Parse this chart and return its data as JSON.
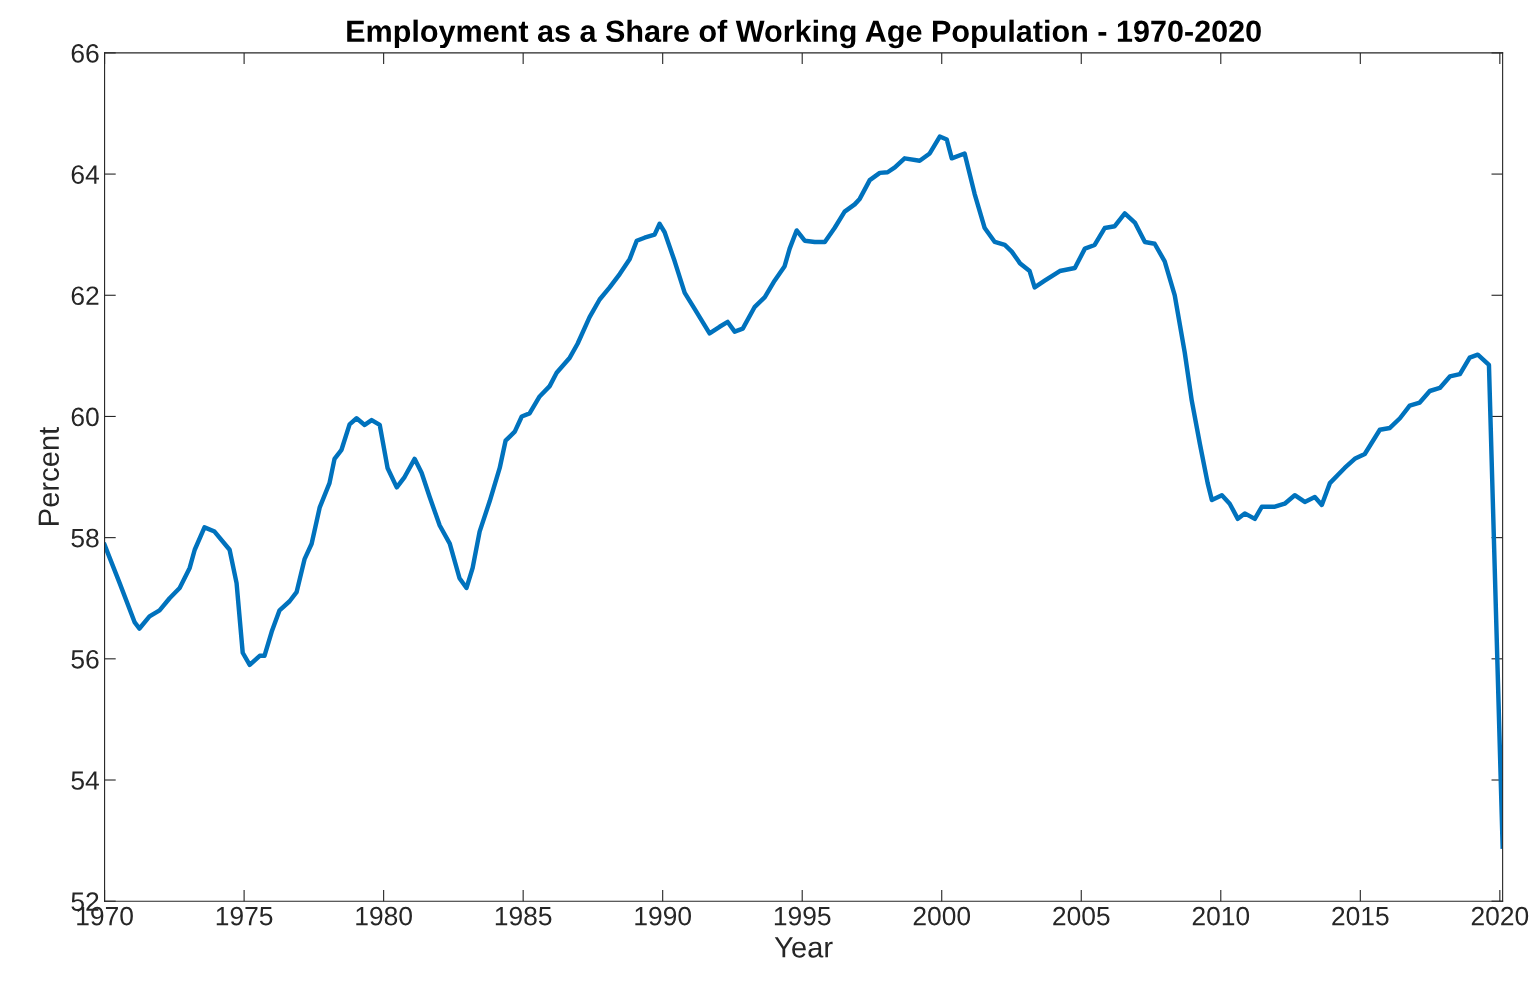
{
  "chart_data": {
    "type": "line",
    "title": "Employment as a Share of Working Age Population - 1970-2020",
    "xlabel": "Year",
    "ylabel": "Percent",
    "xlim": [
      1970,
      2020.1
    ],
    "xticks": [
      1970,
      1975,
      1980,
      1985,
      1990,
      1995,
      2000,
      2005,
      2010,
      2015,
      2020
    ],
    "ylim": [
      52,
      66
    ],
    "yticks": [
      52,
      54,
      56,
      58,
      60,
      62,
      64,
      66
    ],
    "grid": false,
    "legend": false,
    "series": [
      {
        "color": "#0072bd",
        "x": [
          1970.0,
          1970.54,
          1971.08,
          1971.25,
          1971.61,
          1971.97,
          1972.33,
          1972.69,
          1973.05,
          1973.23,
          1973.58,
          1973.94,
          1974.48,
          1974.73,
          1974.95,
          1975.2,
          1975.56,
          1975.73,
          1975.99,
          1976.27,
          1976.63,
          1976.88,
          1977.17,
          1977.42,
          1977.71,
          1978.06,
          1978.24,
          1978.49,
          1978.78,
          1979.03,
          1979.32,
          1979.57,
          1979.86,
          1980.14,
          1980.47,
          1980.75,
          1981.11,
          1981.36,
          1981.65,
          1982.01,
          1982.37,
          1982.72,
          1982.97,
          1983.19,
          1983.44,
          1983.8,
          1984.16,
          1984.37,
          1984.7,
          1984.95,
          1985.23,
          1985.59,
          1985.95,
          1986.2,
          1986.67,
          1986.95,
          1987.38,
          1987.74,
          1988.1,
          1988.46,
          1988.82,
          1989.07,
          1989.35,
          1989.71,
          1989.89,
          1990.07,
          1990.43,
          1990.79,
          1991.15,
          1991.68,
          1992.04,
          1992.33,
          1992.58,
          1992.87,
          1993.3,
          1993.66,
          1994.01,
          1994.37,
          1994.55,
          1994.8,
          1995.09,
          1995.45,
          1995.81,
          1996.16,
          1996.52,
          1996.88,
          1997.06,
          1997.42,
          1997.78,
          1998.06,
          1998.32,
          1998.67,
          1999.21,
          1999.57,
          1999.93,
          2000.18,
          2000.36,
          2000.82,
          2001.18,
          2001.54,
          2001.9,
          2002.26,
          2002.51,
          2002.8,
          2003.15,
          2003.33,
          2003.69,
          2004.23,
          2004.77,
          2005.13,
          2005.48,
          2005.84,
          2006.2,
          2006.56,
          2006.92,
          2007.28,
          2007.63,
          2007.99,
          2008.35,
          2008.71,
          2008.96,
          2009.25,
          2009.53,
          2009.68,
          2010.04,
          2010.32,
          2010.61,
          2010.86,
          2011.22,
          2011.47,
          2011.94,
          2012.29,
          2012.65,
          2013.01,
          2013.37,
          2013.62,
          2013.91,
          2014.44,
          2014.8,
          2015.16,
          2015.7,
          2016.06,
          2016.42,
          2016.77,
          2017.13,
          2017.49,
          2017.85,
          2018.21,
          2018.57,
          2018.92,
          2019.21,
          2019.61,
          2020.1
        ],
        "values": [
          57.88,
          57.25,
          56.6,
          56.5,
          56.7,
          56.8,
          57.0,
          57.17,
          57.5,
          57.8,
          58.17,
          58.1,
          57.8,
          57.25,
          56.1,
          55.9,
          56.05,
          56.05,
          56.45,
          56.8,
          56.95,
          57.1,
          57.65,
          57.9,
          58.5,
          58.9,
          59.3,
          59.45,
          59.87,
          59.97,
          59.86,
          59.94,
          59.86,
          59.15,
          58.83,
          59.0,
          59.3,
          59.07,
          58.67,
          58.2,
          57.9,
          57.33,
          57.17,
          57.5,
          58.1,
          58.6,
          59.15,
          59.6,
          59.75,
          60.0,
          60.05,
          60.33,
          60.5,
          60.72,
          60.97,
          61.2,
          61.64,
          61.93,
          62.13,
          62.35,
          62.6,
          62.9,
          62.95,
          63.0,
          63.18,
          63.04,
          62.56,
          62.04,
          61.77,
          61.37,
          61.48,
          61.56,
          61.4,
          61.45,
          61.81,
          61.97,
          62.24,
          62.48,
          62.77,
          63.07,
          62.9,
          62.88,
          62.88,
          63.11,
          63.38,
          63.5,
          63.59,
          63.9,
          64.02,
          64.03,
          64.11,
          64.26,
          64.22,
          64.34,
          64.62,
          64.57,
          64.26,
          64.34,
          63.67,
          63.11,
          62.88,
          62.83,
          62.72,
          62.53,
          62.4,
          62.13,
          62.24,
          62.4,
          62.45,
          62.77,
          62.83,
          63.11,
          63.14,
          63.35,
          63.2,
          62.88,
          62.85,
          62.56,
          62.0,
          61.05,
          60.26,
          59.55,
          58.9,
          58.62,
          58.7,
          58.56,
          58.31,
          58.4,
          58.31,
          58.51,
          58.51,
          58.56,
          58.7,
          58.59,
          58.67,
          58.54,
          58.9,
          59.15,
          59.3,
          59.38,
          59.78,
          59.81,
          59.97,
          60.18,
          60.23,
          60.42,
          60.47,
          60.66,
          60.7,
          60.97,
          61.02,
          60.85,
          52.9
        ]
      }
    ]
  }
}
